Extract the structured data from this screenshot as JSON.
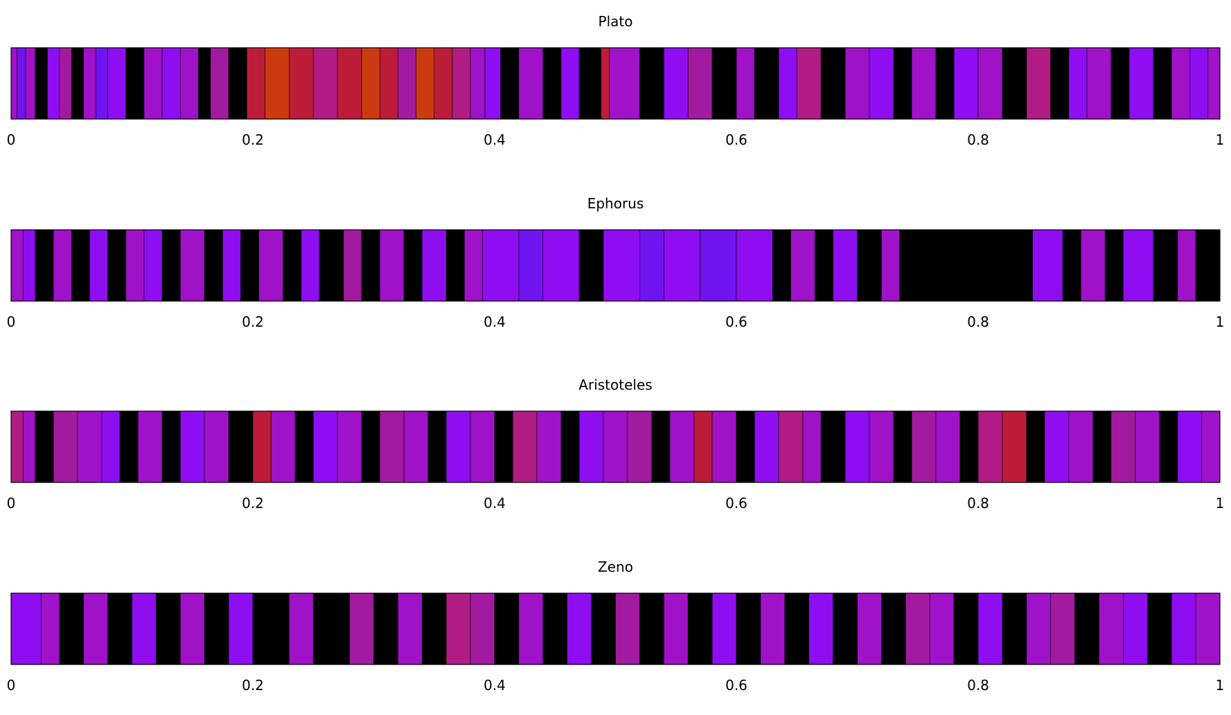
{
  "colors": {
    "palette": [
      "#000000",
      "#6f14ee",
      "#8e0ef1",
      "#9f12c8",
      "#a21a9f",
      "#b01c84",
      "#bd1c38",
      "#cc3a10",
      "#e86a0c",
      "#f2d33a"
    ],
    "frame": "#000000"
  },
  "chart_data": [
    {
      "type": "strip",
      "title": "Plato",
      "xlim": [
        0,
        1
      ],
      "xticks": [
        0,
        0.2,
        0.4,
        0.6,
        0.8,
        1
      ],
      "xticklabels": [
        "0",
        "0.2",
        "0.4",
        "0.6",
        "0.8",
        "1"
      ],
      "segments": [
        [
          0.0,
          0.005,
          3
        ],
        [
          0.005,
          0.012,
          1
        ],
        [
          0.012,
          0.02,
          3
        ],
        [
          0.02,
          0.03,
          0
        ],
        [
          0.03,
          0.04,
          2
        ],
        [
          0.04,
          0.05,
          4
        ],
        [
          0.05,
          0.06,
          0
        ],
        [
          0.06,
          0.07,
          3
        ],
        [
          0.07,
          0.08,
          1
        ],
        [
          0.08,
          0.095,
          2
        ],
        [
          0.095,
          0.11,
          0
        ],
        [
          0.11,
          0.125,
          3
        ],
        [
          0.125,
          0.14,
          2
        ],
        [
          0.14,
          0.155,
          3
        ],
        [
          0.155,
          0.165,
          0
        ],
        [
          0.165,
          0.18,
          4
        ],
        [
          0.18,
          0.195,
          0
        ],
        [
          0.195,
          0.21,
          6
        ],
        [
          0.21,
          0.23,
          7
        ],
        [
          0.23,
          0.25,
          6
        ],
        [
          0.25,
          0.27,
          5
        ],
        [
          0.27,
          0.29,
          6
        ],
        [
          0.29,
          0.305,
          7
        ],
        [
          0.305,
          0.32,
          6
        ],
        [
          0.32,
          0.335,
          4
        ],
        [
          0.335,
          0.35,
          7
        ],
        [
          0.35,
          0.365,
          6
        ],
        [
          0.365,
          0.38,
          5
        ],
        [
          0.38,
          0.392,
          3
        ],
        [
          0.392,
          0.405,
          2
        ],
        [
          0.405,
          0.42,
          0
        ],
        [
          0.42,
          0.44,
          3
        ],
        [
          0.44,
          0.455,
          0
        ],
        [
          0.455,
          0.47,
          2
        ],
        [
          0.47,
          0.488,
          0
        ],
        [
          0.488,
          0.495,
          6
        ],
        [
          0.495,
          0.52,
          3
        ],
        [
          0.52,
          0.54,
          0
        ],
        [
          0.54,
          0.56,
          2
        ],
        [
          0.56,
          0.58,
          4
        ],
        [
          0.58,
          0.6,
          0
        ],
        [
          0.6,
          0.615,
          3
        ],
        [
          0.615,
          0.635,
          0
        ],
        [
          0.635,
          0.65,
          2
        ],
        [
          0.65,
          0.67,
          5
        ],
        [
          0.67,
          0.69,
          0
        ],
        [
          0.69,
          0.71,
          3
        ],
        [
          0.71,
          0.73,
          2
        ],
        [
          0.73,
          0.745,
          0
        ],
        [
          0.745,
          0.765,
          3
        ],
        [
          0.765,
          0.78,
          0
        ],
        [
          0.78,
          0.8,
          2
        ],
        [
          0.8,
          0.82,
          3
        ],
        [
          0.82,
          0.84,
          0
        ],
        [
          0.84,
          0.86,
          5
        ],
        [
          0.86,
          0.875,
          0
        ],
        [
          0.875,
          0.89,
          2
        ],
        [
          0.89,
          0.91,
          3
        ],
        [
          0.91,
          0.925,
          0
        ],
        [
          0.925,
          0.945,
          2
        ],
        [
          0.945,
          0.96,
          0
        ],
        [
          0.96,
          0.975,
          3
        ],
        [
          0.975,
          0.99,
          2
        ],
        [
          0.99,
          1.0,
          3
        ]
      ]
    },
    {
      "type": "strip",
      "title": "Ephorus",
      "xlim": [
        0,
        1
      ],
      "xticks": [
        0,
        0.2,
        0.4,
        0.6,
        0.8,
        1
      ],
      "xticklabels": [
        "0",
        "0.2",
        "0.4",
        "0.6",
        "0.8",
        "1"
      ],
      "segments": [
        [
          0.0,
          0.01,
          3
        ],
        [
          0.01,
          0.02,
          2
        ],
        [
          0.02,
          0.035,
          0
        ],
        [
          0.035,
          0.05,
          3
        ],
        [
          0.05,
          0.065,
          0
        ],
        [
          0.065,
          0.08,
          2
        ],
        [
          0.08,
          0.095,
          0
        ],
        [
          0.095,
          0.11,
          3
        ],
        [
          0.11,
          0.125,
          2
        ],
        [
          0.125,
          0.14,
          0
        ],
        [
          0.14,
          0.16,
          3
        ],
        [
          0.16,
          0.175,
          0
        ],
        [
          0.175,
          0.19,
          2
        ],
        [
          0.19,
          0.205,
          0
        ],
        [
          0.205,
          0.225,
          3
        ],
        [
          0.225,
          0.24,
          0
        ],
        [
          0.24,
          0.255,
          2
        ],
        [
          0.255,
          0.275,
          0
        ],
        [
          0.275,
          0.29,
          4
        ],
        [
          0.29,
          0.305,
          0
        ],
        [
          0.305,
          0.325,
          3
        ],
        [
          0.325,
          0.34,
          0
        ],
        [
          0.34,
          0.36,
          2
        ],
        [
          0.36,
          0.375,
          0
        ],
        [
          0.375,
          0.39,
          3
        ],
        [
          0.39,
          0.42,
          2
        ],
        [
          0.42,
          0.44,
          1
        ],
        [
          0.44,
          0.47,
          2
        ],
        [
          0.47,
          0.49,
          0
        ],
        [
          0.49,
          0.52,
          2
        ],
        [
          0.52,
          0.54,
          1
        ],
        [
          0.54,
          0.57,
          2
        ],
        [
          0.57,
          0.6,
          1
        ],
        [
          0.6,
          0.63,
          2
        ],
        [
          0.63,
          0.645,
          0
        ],
        [
          0.645,
          0.665,
          3
        ],
        [
          0.665,
          0.68,
          0
        ],
        [
          0.68,
          0.7,
          2
        ],
        [
          0.7,
          0.72,
          0
        ],
        [
          0.72,
          0.735,
          3
        ],
        [
          0.735,
          0.845,
          0
        ],
        [
          0.845,
          0.87,
          2
        ],
        [
          0.87,
          0.885,
          0
        ],
        [
          0.885,
          0.905,
          3
        ],
        [
          0.905,
          0.92,
          0
        ],
        [
          0.92,
          0.945,
          2
        ],
        [
          0.945,
          0.965,
          0
        ],
        [
          0.965,
          0.98,
          3
        ],
        [
          0.98,
          1.0,
          0
        ]
      ]
    },
    {
      "type": "strip",
      "title": "Aristoteles",
      "xlim": [
        0,
        1
      ],
      "xticks": [
        0,
        0.2,
        0.4,
        0.6,
        0.8,
        1
      ],
      "xticklabels": [
        "0",
        "0.2",
        "0.4",
        "0.6",
        "0.8",
        "1"
      ],
      "segments": [
        [
          0.0,
          0.01,
          5
        ],
        [
          0.01,
          0.02,
          3
        ],
        [
          0.02,
          0.035,
          0
        ],
        [
          0.035,
          0.055,
          4
        ],
        [
          0.055,
          0.075,
          3
        ],
        [
          0.075,
          0.09,
          2
        ],
        [
          0.09,
          0.105,
          0
        ],
        [
          0.105,
          0.125,
          3
        ],
        [
          0.125,
          0.14,
          0
        ],
        [
          0.14,
          0.16,
          2
        ],
        [
          0.16,
          0.18,
          3
        ],
        [
          0.18,
          0.2,
          0
        ],
        [
          0.2,
          0.215,
          6
        ],
        [
          0.215,
          0.235,
          3
        ],
        [
          0.235,
          0.25,
          0
        ],
        [
          0.25,
          0.27,
          2
        ],
        [
          0.27,
          0.29,
          3
        ],
        [
          0.29,
          0.305,
          0
        ],
        [
          0.305,
          0.325,
          4
        ],
        [
          0.325,
          0.345,
          3
        ],
        [
          0.345,
          0.36,
          0
        ],
        [
          0.36,
          0.38,
          2
        ],
        [
          0.38,
          0.4,
          3
        ],
        [
          0.4,
          0.415,
          0
        ],
        [
          0.415,
          0.435,
          5
        ],
        [
          0.435,
          0.455,
          3
        ],
        [
          0.455,
          0.47,
          0
        ],
        [
          0.47,
          0.49,
          2
        ],
        [
          0.49,
          0.51,
          3
        ],
        [
          0.51,
          0.53,
          4
        ],
        [
          0.53,
          0.545,
          0
        ],
        [
          0.545,
          0.565,
          3
        ],
        [
          0.565,
          0.58,
          6
        ],
        [
          0.58,
          0.6,
          3
        ],
        [
          0.6,
          0.615,
          0
        ],
        [
          0.615,
          0.635,
          2
        ],
        [
          0.635,
          0.655,
          5
        ],
        [
          0.655,
          0.67,
          3
        ],
        [
          0.67,
          0.69,
          0
        ],
        [
          0.69,
          0.71,
          2
        ],
        [
          0.71,
          0.73,
          3
        ],
        [
          0.73,
          0.745,
          0
        ],
        [
          0.745,
          0.765,
          4
        ],
        [
          0.765,
          0.785,
          3
        ],
        [
          0.785,
          0.8,
          0
        ],
        [
          0.8,
          0.82,
          5
        ],
        [
          0.82,
          0.84,
          6
        ],
        [
          0.84,
          0.855,
          0
        ],
        [
          0.855,
          0.875,
          2
        ],
        [
          0.875,
          0.895,
          3
        ],
        [
          0.895,
          0.91,
          0
        ],
        [
          0.91,
          0.93,
          4
        ],
        [
          0.93,
          0.95,
          3
        ],
        [
          0.95,
          0.965,
          0
        ],
        [
          0.965,
          0.985,
          2
        ],
        [
          0.985,
          1.0,
          3
        ]
      ]
    },
    {
      "type": "strip",
      "title": "Zeno",
      "xlim": [
        0,
        1
      ],
      "xticks": [
        0,
        0.2,
        0.4,
        0.6,
        0.8,
        1
      ],
      "xticklabels": [
        "0",
        "0.2",
        "0.4",
        "0.6",
        "0.8",
        "1"
      ],
      "segments": [
        [
          0.0,
          0.025,
          2
        ],
        [
          0.025,
          0.04,
          3
        ],
        [
          0.04,
          0.06,
          0
        ],
        [
          0.06,
          0.08,
          3
        ],
        [
          0.08,
          0.1,
          0
        ],
        [
          0.1,
          0.12,
          2
        ],
        [
          0.12,
          0.14,
          0
        ],
        [
          0.14,
          0.16,
          3
        ],
        [
          0.16,
          0.18,
          0
        ],
        [
          0.18,
          0.2,
          2
        ],
        [
          0.2,
          0.23,
          0
        ],
        [
          0.23,
          0.25,
          3
        ],
        [
          0.25,
          0.28,
          0
        ],
        [
          0.28,
          0.3,
          4
        ],
        [
          0.3,
          0.32,
          0
        ],
        [
          0.32,
          0.34,
          3
        ],
        [
          0.34,
          0.36,
          0
        ],
        [
          0.36,
          0.38,
          5
        ],
        [
          0.38,
          0.4,
          4
        ],
        [
          0.4,
          0.42,
          0
        ],
        [
          0.42,
          0.44,
          3
        ],
        [
          0.44,
          0.46,
          0
        ],
        [
          0.46,
          0.48,
          2
        ],
        [
          0.48,
          0.5,
          0
        ],
        [
          0.5,
          0.52,
          4
        ],
        [
          0.52,
          0.54,
          0
        ],
        [
          0.54,
          0.56,
          3
        ],
        [
          0.56,
          0.58,
          0
        ],
        [
          0.58,
          0.6,
          2
        ],
        [
          0.6,
          0.62,
          0
        ],
        [
          0.62,
          0.64,
          3
        ],
        [
          0.64,
          0.66,
          0
        ],
        [
          0.66,
          0.68,
          2
        ],
        [
          0.68,
          0.7,
          0
        ],
        [
          0.7,
          0.72,
          3
        ],
        [
          0.72,
          0.74,
          0
        ],
        [
          0.74,
          0.76,
          4
        ],
        [
          0.76,
          0.78,
          3
        ],
        [
          0.78,
          0.8,
          0
        ],
        [
          0.8,
          0.82,
          2
        ],
        [
          0.82,
          0.84,
          0
        ],
        [
          0.84,
          0.86,
          3
        ],
        [
          0.86,
          0.88,
          4
        ],
        [
          0.88,
          0.9,
          0
        ],
        [
          0.9,
          0.92,
          3
        ],
        [
          0.92,
          0.94,
          2
        ],
        [
          0.94,
          0.96,
          0
        ],
        [
          0.96,
          0.98,
          2
        ],
        [
          0.98,
          1.0,
          3
        ]
      ]
    }
  ]
}
